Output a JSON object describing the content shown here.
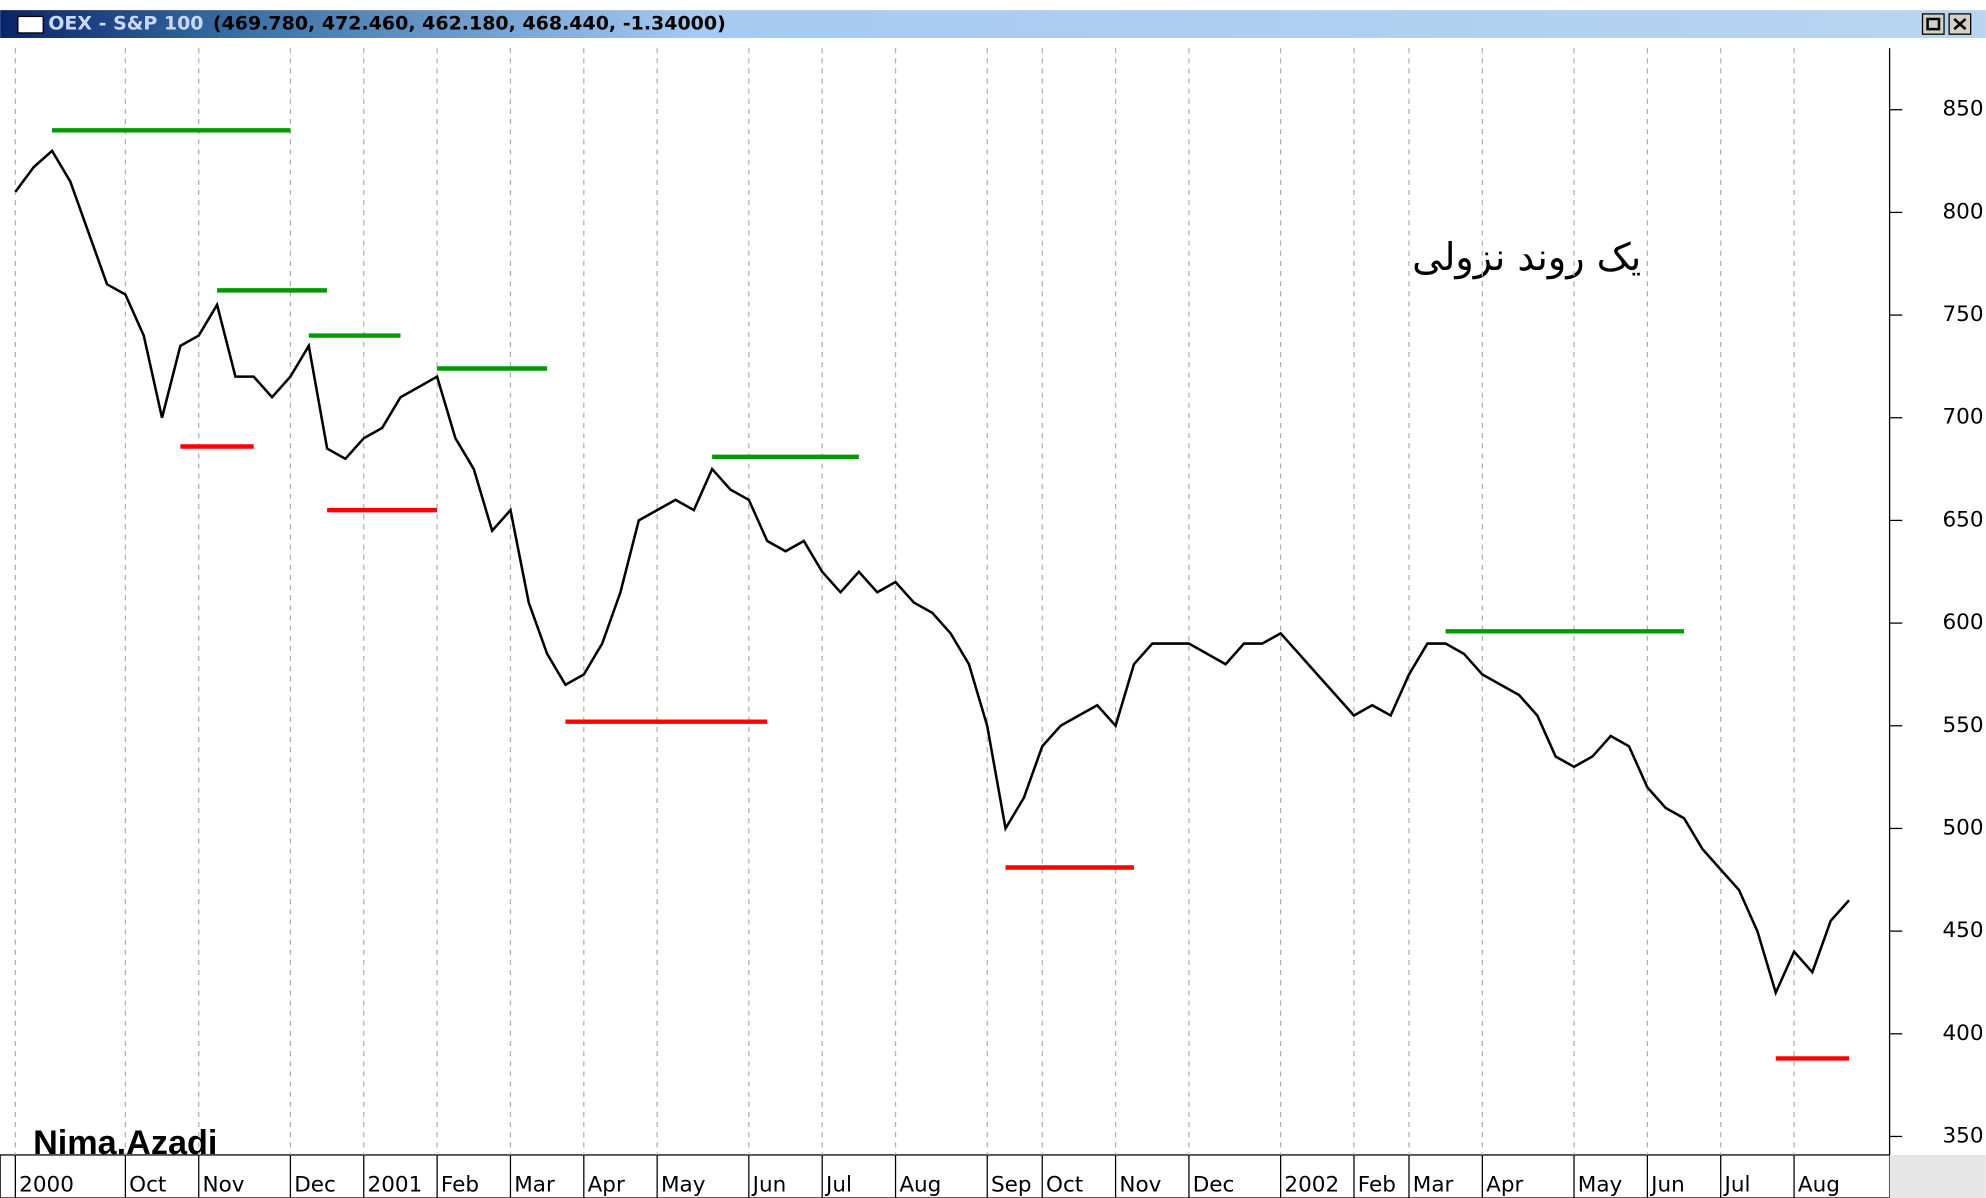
{
  "chart_data": {
    "type": "line",
    "title": "OEX - S&P 100",
    "subtitle": "(469.780, 472.460, 462.180, 468.440, -1.34000)",
    "annotations": [
      "یک روند نزولی",
      "Nima.Azadi"
    ],
    "categories": [
      "2000",
      null,
      null,
      null,
      null,
      null,
      "Oct",
      null,
      null,
      null,
      "Nov",
      null,
      null,
      null,
      null,
      "Dec",
      null,
      null,
      null,
      "2001",
      null,
      null,
      null,
      "Feb",
      null,
      null,
      null,
      "Mar",
      null,
      null,
      null,
      "Apr",
      null,
      null,
      null,
      "May",
      null,
      null,
      null,
      null,
      "Jun",
      null,
      null,
      null,
      "Jul",
      null,
      null,
      null,
      "Aug",
      null,
      null,
      null,
      null,
      "Sep",
      null,
      null,
      "Oct",
      null,
      null,
      null,
      "Nov",
      null,
      null,
      null,
      "Dec",
      null,
      null,
      null,
      null,
      "2002",
      null,
      null,
      null,
      "Feb",
      null,
      null,
      "Mar",
      null,
      null,
      null,
      "Apr",
      null,
      null,
      null,
      null,
      "May",
      null,
      null,
      null,
      "Jun",
      null,
      null,
      null,
      "Jul",
      null,
      null,
      null,
      "Aug",
      null,
      null,
      null
    ],
    "series": [
      {
        "color": "#000000",
        "values": [
          810,
          822,
          830,
          815,
          790,
          765,
          760,
          740,
          700,
          735,
          740,
          755,
          720,
          720,
          710,
          720,
          735,
          685,
          680,
          690,
          695,
          710,
          715,
          720,
          690,
          675,
          645,
          655,
          610,
          585,
          570,
          575,
          590,
          615,
          650,
          655,
          660,
          655,
          675,
          665,
          660,
          640,
          635,
          640,
          625,
          615,
          625,
          615,
          620,
          610,
          605,
          595,
          580,
          550,
          500,
          515,
          540,
          550,
          555,
          560,
          550,
          580,
          590,
          590,
          590,
          585,
          580,
          590,
          590,
          595,
          585,
          575,
          565,
          555,
          560,
          555,
          575,
          590,
          590,
          585,
          575,
          570,
          565,
          555,
          535,
          530,
          535,
          545,
          540,
          520,
          510,
          505,
          490,
          480,
          470,
          450,
          420,
          440,
          430,
          455,
          465
        ]
      },
      {
        "color": "#009900",
        "values": [
          null,
          null,
          840,
          840,
          840,
          840,
          840,
          840,
          840,
          840,
          840,
          840,
          840,
          840,
          840,
          840,
          null,
          null,
          null,
          null,
          null,
          null,
          null,
          724,
          724,
          724,
          724,
          724,
          724,
          724,
          null,
          null,
          null,
          null,
          null,
          null,
          null,
          null,
          null,
          null,
          null,
          null,
          null,
          null,
          null,
          null,
          null,
          null,
          null,
          null,
          null,
          null,
          null,
          null,
          null,
          null,
          null,
          null,
          null,
          null,
          null,
          null,
          null,
          null,
          null,
          null,
          null,
          null,
          null,
          null,
          null,
          null,
          null,
          null,
          null,
          null,
          null,
          null,
          596,
          596,
          596,
          596,
          596,
          596,
          596,
          596,
          596,
          596,
          596,
          596,
          596,
          596,
          null,
          null,
          null,
          null,
          null,
          null,
          null,
          null,
          null
        ]
      },
      {
        "color": "#009900",
        "values": [
          null,
          null,
          null,
          null,
          null,
          null,
          null,
          null,
          null,
          null,
          null,
          762,
          762,
          762,
          762,
          762,
          762,
          762,
          null,
          null,
          null,
          null,
          null,
          null,
          null,
          null,
          null,
          null,
          null,
          null,
          null,
          null,
          null,
          null,
          null,
          null,
          null,
          null,
          681,
          681,
          681,
          681,
          681,
          681,
          681,
          681,
          681,
          null,
          null,
          null,
          null,
          null,
          null,
          null,
          null,
          null,
          null,
          null,
          null,
          null,
          null,
          null,
          null,
          null,
          null,
          null,
          null,
          null,
          null,
          null,
          null,
          null,
          null,
          null,
          null,
          null,
          null,
          null,
          null,
          null,
          null,
          null,
          null,
          null,
          null,
          null,
          null,
          null,
          null,
          null,
          null,
          null,
          null,
          null,
          null,
          null,
          null,
          null,
          null,
          null,
          null
        ]
      },
      {
        "color": "#009900",
        "values": [
          null,
          null,
          null,
          null,
          null,
          null,
          null,
          null,
          null,
          null,
          null,
          null,
          null,
          null,
          null,
          null,
          740,
          740,
          740,
          740,
          740,
          740,
          null,
          null,
          null,
          null,
          null,
          null,
          null,
          null,
          null,
          null,
          null,
          null,
          null,
          null,
          null,
          null,
          null,
          null,
          null,
          null,
          null,
          null,
          null,
          null,
          null,
          null,
          null,
          null,
          null,
          null,
          null,
          null,
          null,
          null,
          null,
          null,
          null,
          null,
          null,
          null,
          null,
          null,
          null,
          null,
          null,
          null,
          null,
          null,
          null,
          null,
          null,
          null,
          null,
          null,
          null,
          null,
          null,
          null,
          null,
          null,
          null,
          null,
          null,
          null,
          null,
          null,
          null,
          null,
          null,
          null,
          null,
          null,
          null,
          null,
          null,
          null,
          null,
          null,
          null
        ]
      },
      {
        "color": "#ff0000",
        "values": [
          null,
          null,
          null,
          null,
          null,
          null,
          null,
          null,
          null,
          686,
          686,
          686,
          686,
          686,
          null,
          null,
          null,
          655,
          655,
          655,
          655,
          655,
          655,
          655,
          null,
          null,
          null,
          null,
          null,
          null,
          552,
          552,
          552,
          552,
          552,
          552,
          552,
          552,
          552,
          552,
          552,
          552,
          null,
          null,
          null,
          null,
          null,
          null,
          null,
          null,
          null,
          null,
          null,
          null,
          481,
          481,
          481,
          481,
          481,
          481,
          481,
          481,
          null,
          null,
          null,
          null,
          null,
          null,
          null,
          null,
          null,
          null,
          null,
          null,
          null,
          null,
          null,
          null,
          null,
          null,
          null,
          null,
          null,
          null,
          null,
          null,
          null,
          null,
          null,
          null,
          null,
          null,
          null,
          null,
          null,
          null,
          388,
          388,
          388,
          388,
          388
        ]
      }
    ],
    "ylim": [
      341,
      880
    ],
    "yticks": [
      350,
      400,
      450,
      500,
      550,
      600,
      650,
      700,
      750,
      800,
      850
    ],
    "grid": true
  }
}
